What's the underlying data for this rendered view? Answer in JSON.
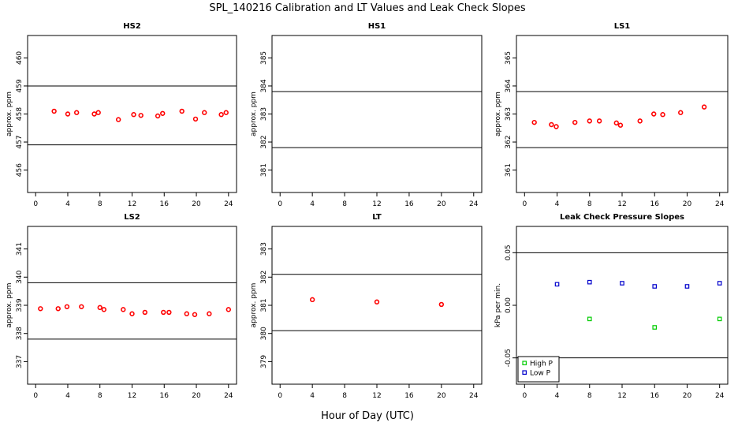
{
  "figure": {
    "title": "SPL_140216  Calibration and LT Values and Leak Check Slopes",
    "xlabel": "Hour of Day (UTC)"
  },
  "chart_data": [
    {
      "type": "scatter",
      "title": "HS2",
      "ylabel": "approx. ppm",
      "xlim": [
        -1,
        25
      ],
      "ylim": [
        455.2,
        460.8
      ],
      "xticks": [
        "0",
        "4",
        "8",
        "12",
        "16",
        "20",
        "24"
      ],
      "yticks": [
        "456",
        "457",
        "458",
        "459",
        "460"
      ],
      "hlines": [
        459.0,
        456.9
      ],
      "series": [
        {
          "color": "#ff0000",
          "marker": "circle",
          "x": [
            2.3,
            4.0,
            5.1,
            7.3,
            7.8,
            10.3,
            12.2,
            13.1,
            15.2,
            15.8,
            18.2,
            19.9,
            21.0,
            23.1,
            23.7
          ],
          "y": [
            458.1,
            458.0,
            458.05,
            458.0,
            458.05,
            457.8,
            457.98,
            457.95,
            457.93,
            458.02,
            458.1,
            457.82,
            458.05,
            457.98,
            458.05
          ]
        }
      ]
    },
    {
      "type": "scatter",
      "title": "HS1",
      "ylabel": "approx. ppm",
      "xlim": [
        -1,
        25
      ],
      "ylim": [
        380.2,
        385.8
      ],
      "xticks": [
        "0",
        "4",
        "8",
        "12",
        "16",
        "20",
        "24"
      ],
      "yticks": [
        "381",
        "382",
        "383",
        "384",
        "385"
      ],
      "hlines": [
        383.8,
        381.8
      ],
      "series": []
    },
    {
      "type": "scatter",
      "title": "LS1",
      "ylabel": "approx. ppm",
      "xlim": [
        -1,
        25
      ],
      "ylim": [
        360.2,
        365.8
      ],
      "xticks": [
        "0",
        "4",
        "8",
        "12",
        "16",
        "20",
        "24"
      ],
      "yticks": [
        "361",
        "362",
        "363",
        "364",
        "365"
      ],
      "hlines": [
        363.8,
        361.8
      ],
      "series": [
        {
          "color": "#ff0000",
          "marker": "circle",
          "x": [
            1.2,
            3.3,
            3.9,
            6.2,
            8.0,
            9.2,
            11.3,
            11.8,
            14.2,
            15.9,
            17.0,
            19.2,
            22.1
          ],
          "y": [
            362.7,
            362.62,
            362.55,
            362.7,
            362.75,
            362.75,
            362.68,
            362.6,
            362.75,
            363.0,
            362.98,
            363.05,
            363.25
          ]
        }
      ]
    },
    {
      "type": "scatter",
      "title": "LS2",
      "ylabel": "approx. ppm",
      "xlim": [
        -1,
        25
      ],
      "ylim": [
        336.2,
        341.8
      ],
      "xticks": [
        "0",
        "4",
        "8",
        "12",
        "16",
        "20",
        "24"
      ],
      "yticks": [
        "337",
        "338",
        "339",
        "340",
        "341"
      ],
      "hlines": [
        339.8,
        337.8
      ],
      "series": [
        {
          "color": "#ff0000",
          "marker": "circle",
          "x": [
            0.6,
            2.8,
            3.9,
            5.7,
            8.0,
            8.5,
            10.9,
            12.0,
            13.6,
            15.9,
            16.6,
            18.8,
            19.8,
            21.6,
            24.0
          ],
          "y": [
            338.88,
            338.88,
            338.95,
            338.95,
            338.92,
            338.85,
            338.85,
            338.7,
            338.75,
            338.75,
            338.75,
            338.7,
            338.67,
            338.7,
            338.85
          ]
        }
      ]
    },
    {
      "type": "scatter",
      "title": "LT",
      "ylabel": "approx. ppm",
      "xlim": [
        -1,
        25
      ],
      "ylim": [
        378.2,
        383.8
      ],
      "xticks": [
        "0",
        "4",
        "8",
        "12",
        "16",
        "20",
        "24"
      ],
      "yticks": [
        "379",
        "380",
        "381",
        "382",
        "383"
      ],
      "hlines": [
        382.1,
        380.1
      ],
      "series": [
        {
          "color": "#ff0000",
          "marker": "circle",
          "x": [
            4.0,
            12.0,
            20.0
          ],
          "y": [
            381.2,
            381.12,
            381.03
          ]
        }
      ]
    },
    {
      "type": "scatter",
      "title": "Leak Check Pressure Slopes",
      "ylabel": "kPa per min.",
      "xlim": [
        -1,
        25
      ],
      "ylim": [
        -0.075,
        0.075
      ],
      "xticks": [
        "0",
        "4",
        "8",
        "12",
        "16",
        "20",
        "24"
      ],
      "yticks": [
        "-0.05",
        "0.00",
        "0.05"
      ],
      "hlines": [
        0.05,
        -0.05
      ],
      "legend": "bottom-left",
      "series": [
        {
          "name": "High P",
          "color": "#00cc00",
          "marker": "square",
          "x": [
            8,
            16,
            24
          ],
          "y": [
            -0.013,
            -0.021,
            -0.013
          ]
        },
        {
          "name": "Low P",
          "color": "#0000cc",
          "marker": "square",
          "x": [
            4,
            8,
            12,
            16,
            20,
            24
          ],
          "y": [
            0.02,
            0.022,
            0.021,
            0.018,
            0.018,
            0.021
          ]
        }
      ]
    }
  ]
}
